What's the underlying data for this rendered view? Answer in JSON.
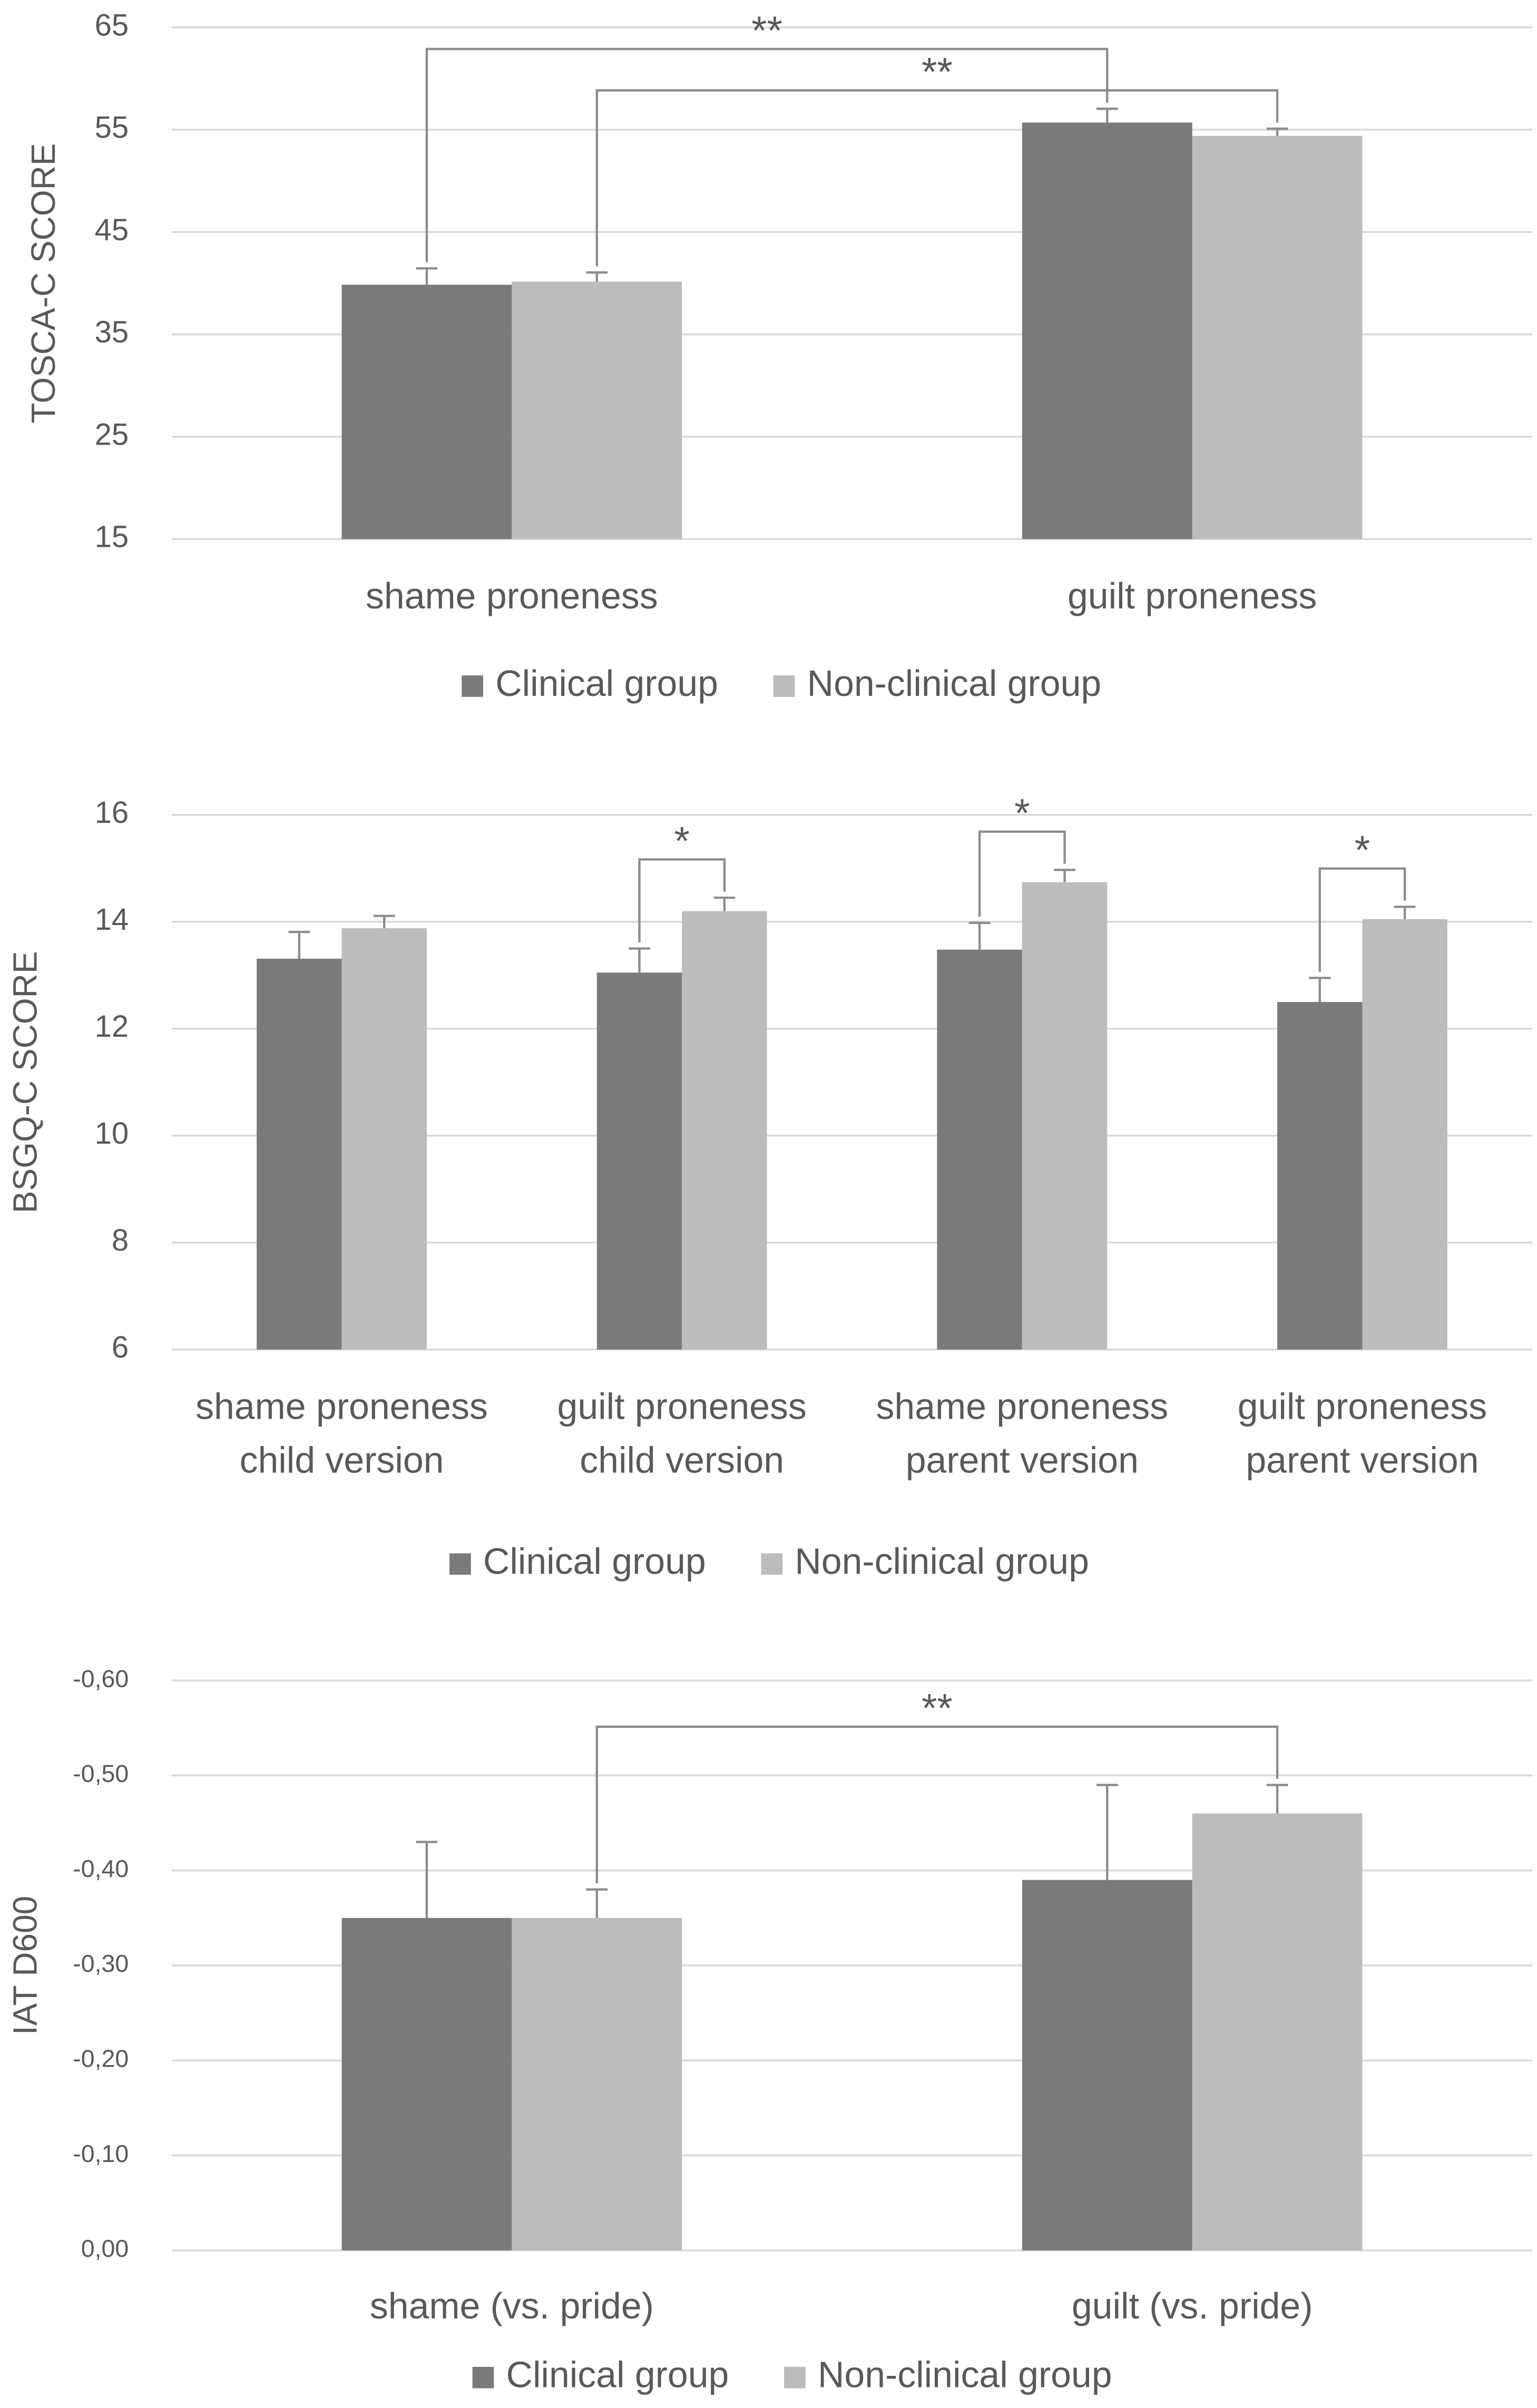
{
  "chart_data": [
    {
      "type": "bar",
      "y_label": "TOSCA-C SCORE",
      "categories": [
        [
          "shame proneness"
        ],
        [
          "guilt proneness"
        ]
      ],
      "series": [
        {
          "name": "Clinical group",
          "color": "#7a7a7c",
          "values": [
            39.85,
            55.7
          ],
          "errors": [
            1.6,
            1.35
          ]
        },
        {
          "name": "Non-clinical group",
          "color": "#bcbcbe",
          "values": [
            40.15,
            54.4
          ],
          "errors": [
            0.9,
            0.7
          ]
        }
      ],
      "ylim": [
        15,
        65
      ],
      "yticks": [
        15,
        25,
        35,
        45,
        55,
        65
      ],
      "grid": true,
      "significance": [
        {
          "label": "**",
          "series": [
            0,
            0
          ],
          "categories": [
            0,
            1
          ]
        },
        {
          "label": "**",
          "series": [
            1,
            1
          ],
          "categories": [
            0,
            1
          ]
        }
      ]
    },
    {
      "type": "bar",
      "y_label": "BSGQ-C SCORE",
      "categories": [
        [
          "shame proneness",
          "child version"
        ],
        [
          "guilt proneness",
          "child version"
        ],
        [
          "shame proneness",
          "parent version"
        ],
        [
          "guilt proneness",
          "parent version"
        ]
      ],
      "series": [
        {
          "name": "Clinical group",
          "color": "#7a7a7c",
          "values": [
            13.31,
            13.05,
            13.48,
            12.5
          ],
          "errors": [
            0.5,
            0.45,
            0.5,
            0.45
          ]
        },
        {
          "name": "Non-clinical group",
          "color": "#bcbcbe",
          "values": [
            13.88,
            14.2,
            14.74,
            14.05
          ],
          "errors": [
            0.23,
            0.25,
            0.23,
            0.23
          ]
        }
      ],
      "ylim": [
        6,
        16
      ],
      "yticks": [
        6,
        8,
        10,
        12,
        14,
        16
      ],
      "grid": true,
      "significance": [
        {
          "label": "*",
          "series": [
            0,
            1
          ],
          "categories": [
            1,
            1
          ]
        },
        {
          "label": "*",
          "series": [
            0,
            1
          ],
          "categories": [
            2,
            2
          ]
        },
        {
          "label": "*",
          "series": [
            0,
            1
          ],
          "categories": [
            3,
            3
          ]
        }
      ]
    },
    {
      "type": "bar",
      "y_label": "IAT  D600",
      "categories": [
        [
          "shame (vs. pride)"
        ],
        [
          "guilt (vs. pride)"
        ]
      ],
      "series": [
        {
          "name": "Clinical group",
          "color": "#7a7a7c",
          "values": [
            -0.35,
            -0.39
          ],
          "errors": [
            0.08,
            0.1
          ]
        },
        {
          "name": "Non-clinical group",
          "color": "#bcbcbe",
          "values": [
            -0.35,
            -0.46
          ],
          "errors": [
            0.03,
            0.03
          ]
        }
      ],
      "ylim": [
        0,
        -0.6
      ],
      "yticks": [
        {
          "value": 0,
          "label": "0,00"
        },
        {
          "value": -0.1,
          "label": "-0,10"
        },
        {
          "value": -0.2,
          "label": "-0,20"
        },
        {
          "value": -0.3,
          "label": "-0,30"
        },
        {
          "value": -0.4,
          "label": "-0,40"
        },
        {
          "value": -0.5,
          "label": "-0,50"
        },
        {
          "value": -0.6,
          "label": "-0,60"
        }
      ],
      "grid": true,
      "significance": [
        {
          "label": "**",
          "series": [
            1,
            1
          ],
          "categories": [
            0,
            1
          ]
        }
      ]
    }
  ]
}
